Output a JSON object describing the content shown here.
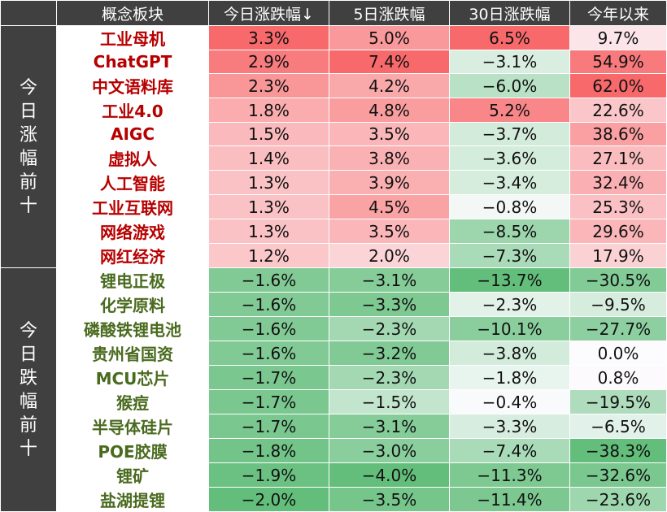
{
  "header": {
    "name": "概念板块",
    "today": "今日涨跌幅↓",
    "five_day": "5日涨跌幅",
    "thirty_day": "30日涨跌幅",
    "ytd": "今年以来"
  },
  "groups": {
    "top_label": "今日涨幅前十",
    "bottom_label": "今日跌幅前十"
  },
  "top_rows": [
    {
      "name": "工业母机",
      "today": "3.3%",
      "d5": "5.0%",
      "d30": "6.5%",
      "ytd": "9.7%"
    },
    {
      "name": "ChatGPT",
      "today": "2.9%",
      "d5": "7.4%",
      "d30": "−3.1%",
      "ytd": "54.9%"
    },
    {
      "name": "中文语料库",
      "today": "2.3%",
      "d5": "4.2%",
      "d30": "−6.0%",
      "ytd": "62.0%"
    },
    {
      "name": "工业4.0",
      "today": "1.8%",
      "d5": "4.8%",
      "d30": "5.2%",
      "ytd": "22.6%"
    },
    {
      "name": "AIGC",
      "today": "1.5%",
      "d5": "3.5%",
      "d30": "−3.7%",
      "ytd": "38.6%"
    },
    {
      "name": "虚拟人",
      "today": "1.4%",
      "d5": "3.8%",
      "d30": "−3.6%",
      "ytd": "27.1%"
    },
    {
      "name": "人工智能",
      "today": "1.3%",
      "d5": "3.9%",
      "d30": "−3.4%",
      "ytd": "32.4%"
    },
    {
      "name": "工业互联网",
      "today": "1.3%",
      "d5": "4.5%",
      "d30": "−0.8%",
      "ytd": "25.3%"
    },
    {
      "name": "网络游戏",
      "today": "1.3%",
      "d5": "3.5%",
      "d30": "−8.5%",
      "ytd": "29.6%"
    },
    {
      "name": "网红经济",
      "today": "1.2%",
      "d5": "2.0%",
      "d30": "−7.3%",
      "ytd": "17.9%"
    }
  ],
  "bottom_rows": [
    {
      "name": "锂电正极",
      "today": "−1.6%",
      "d5": "−3.1%",
      "d30": "−13.7%",
      "ytd": "−30.5%"
    },
    {
      "name": "化学原料",
      "today": "−1.6%",
      "d5": "−3.3%",
      "d30": "−2.3%",
      "ytd": "−9.5%"
    },
    {
      "name": "磷酸铁锂电池",
      "today": "−1.6%",
      "d5": "−2.3%",
      "d30": "−10.1%",
      "ytd": "−27.7%"
    },
    {
      "name": "贵州省国资",
      "today": "−1.6%",
      "d5": "−3.2%",
      "d30": "−3.8%",
      "ytd": "0.0%"
    },
    {
      "name": "MCU芯片",
      "today": "−1.7%",
      "d5": "−2.3%",
      "d30": "−1.8%",
      "ytd": "0.8%"
    },
    {
      "name": "猴痘",
      "today": "−1.7%",
      "d5": "−1.5%",
      "d30": "−0.4%",
      "ytd": "−19.5%"
    },
    {
      "name": "半导体硅片",
      "today": "−1.7%",
      "d5": "−3.1%",
      "d30": "−3.3%",
      "ytd": "−6.5%"
    },
    {
      "name": "POE胶膜",
      "today": "−1.8%",
      "d5": "−3.0%",
      "d30": "−7.4%",
      "ytd": "−38.3%"
    },
    {
      "name": "锂矿",
      "today": "−1.9%",
      "d5": "−4.0%",
      "d30": "−11.3%",
      "ytd": "−32.6%"
    },
    {
      "name": "盐湖提锂",
      "today": "−2.0%",
      "d5": "−3.5%",
      "d30": "−11.4%",
      "ytd": "−23.6%"
    }
  ],
  "colors": {
    "header_bg": "#404040",
    "up_text": "#b70000",
    "down_text": "#4a6b1f",
    "positive_scale_max": "#f8696b",
    "negative_scale_max": "#63be7b",
    "neutral": "#fcfcff"
  },
  "chart_data": {
    "type": "table",
    "columns": [
      "概念板块",
      "今日涨跌幅↓",
      "5日涨跌幅",
      "30日涨跌幅",
      "今年以来"
    ],
    "row_groups": [
      "今日涨幅前十",
      "今日跌幅前十"
    ],
    "rows": [
      [
        "工业母机",
        3.3,
        5.0,
        6.5,
        9.7
      ],
      [
        "ChatGPT",
        2.9,
        7.4,
        -3.1,
        54.9
      ],
      [
        "中文语料库",
        2.3,
        4.2,
        -6.0,
        62.0
      ],
      [
        "工业4.0",
        1.8,
        4.8,
        5.2,
        22.6
      ],
      [
        "AIGC",
        1.5,
        3.5,
        -3.7,
        38.6
      ],
      [
        "虚拟人",
        1.4,
        3.8,
        -3.6,
        27.1
      ],
      [
        "人工智能",
        1.3,
        3.9,
        -3.4,
        32.4
      ],
      [
        "工业互联网",
        1.3,
        4.5,
        -0.8,
        25.3
      ],
      [
        "网络游戏",
        1.3,
        3.5,
        -8.5,
        29.6
      ],
      [
        "网红经济",
        1.2,
        2.0,
        -7.3,
        17.9
      ],
      [
        "锂电正极",
        -1.6,
        -3.1,
        -13.7,
        -30.5
      ],
      [
        "化学原料",
        -1.6,
        -3.3,
        -2.3,
        -9.5
      ],
      [
        "磷酸铁锂电池",
        -1.6,
        -2.3,
        -10.1,
        -27.7
      ],
      [
        "贵州省国资",
        -1.6,
        -3.2,
        -3.8,
        0.0
      ],
      [
        "MCU芯片",
        -1.7,
        -2.3,
        -1.8,
        0.8
      ],
      [
        "猴痘",
        -1.7,
        -1.5,
        -0.4,
        -19.5
      ],
      [
        "半导体硅片",
        -1.7,
        -3.1,
        -3.3,
        -6.5
      ],
      [
        "POE胶膜",
        -1.8,
        -3.0,
        -7.4,
        -38.3
      ],
      [
        "锂矿",
        -1.9,
        -4.0,
        -11.3,
        -32.6
      ],
      [
        "盐湖提锂",
        -2.0,
        -3.5,
        -11.4,
        -23.6
      ]
    ]
  }
}
